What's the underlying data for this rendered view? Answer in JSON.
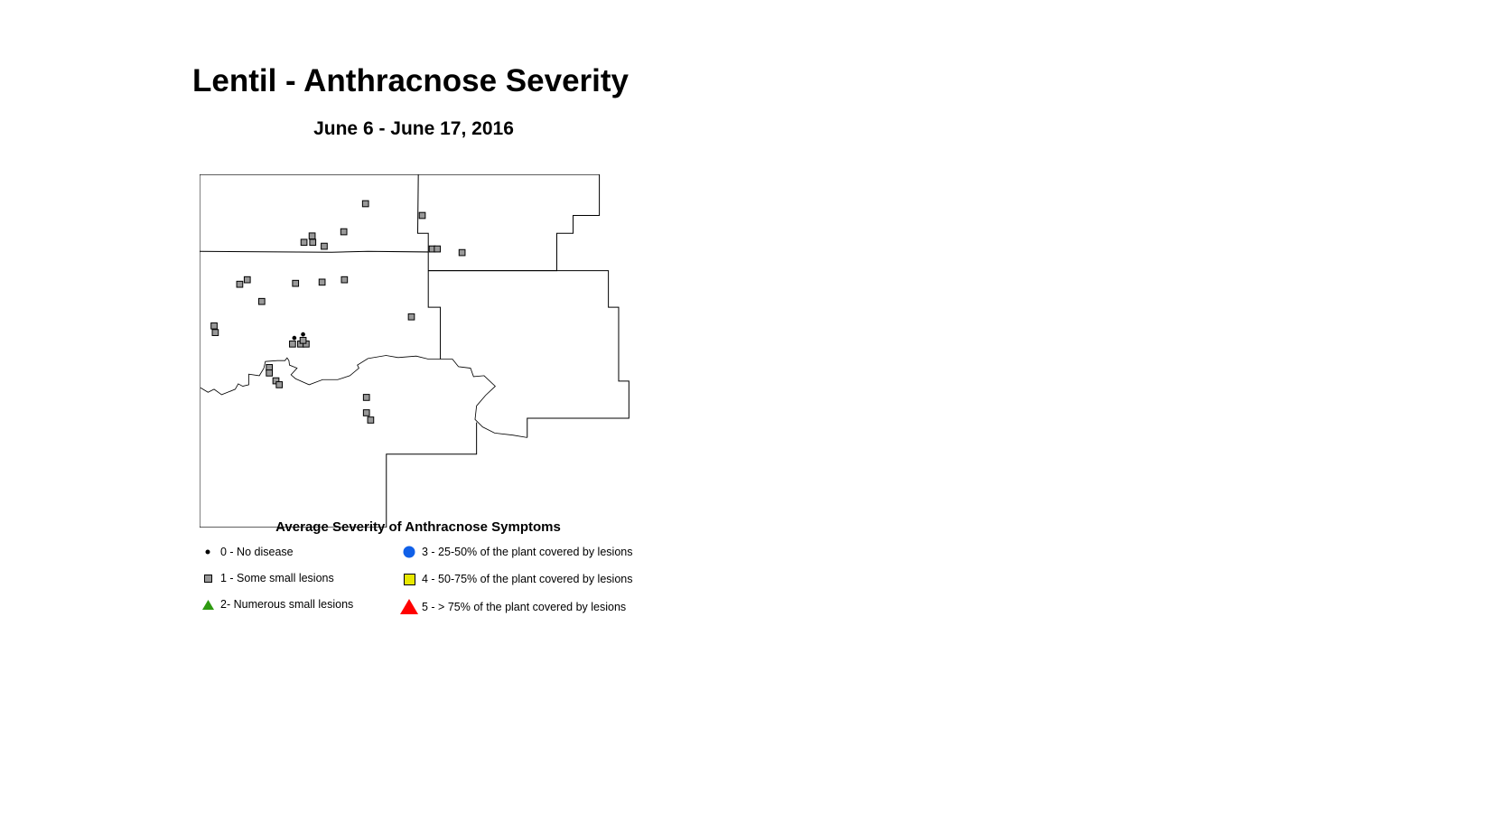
{
  "title": "Lentil - Anthracnose Severity",
  "subtitle": "June 6 - June 17, 2016",
  "legend": {
    "title": "Average Severity of Anthracnose Symptoms",
    "items": [
      {
        "label": "0 - No disease",
        "symbol": "dot",
        "color": "#000000"
      },
      {
        "label": "1 - Some small lesions",
        "symbol": "square",
        "color": "#999999"
      },
      {
        "label": "2- Numerous small lesions",
        "symbol": "triangle",
        "color": "#2e9a10"
      },
      {
        "label": "3 - 25-50% of the plant covered by lesions",
        "symbol": "circle",
        "color": "#1060e8"
      },
      {
        "label": "4 - 50-75% of the plant covered by lesions",
        "symbol": "square",
        "color": "#e8e800"
      },
      {
        "label": "5 - > 75% of the plant covered by lesions",
        "symbol": "triangle",
        "color": "#ff0000"
      }
    ]
  },
  "map": {
    "severity_counts": {
      "0": 2,
      "1": 30
    }
  }
}
